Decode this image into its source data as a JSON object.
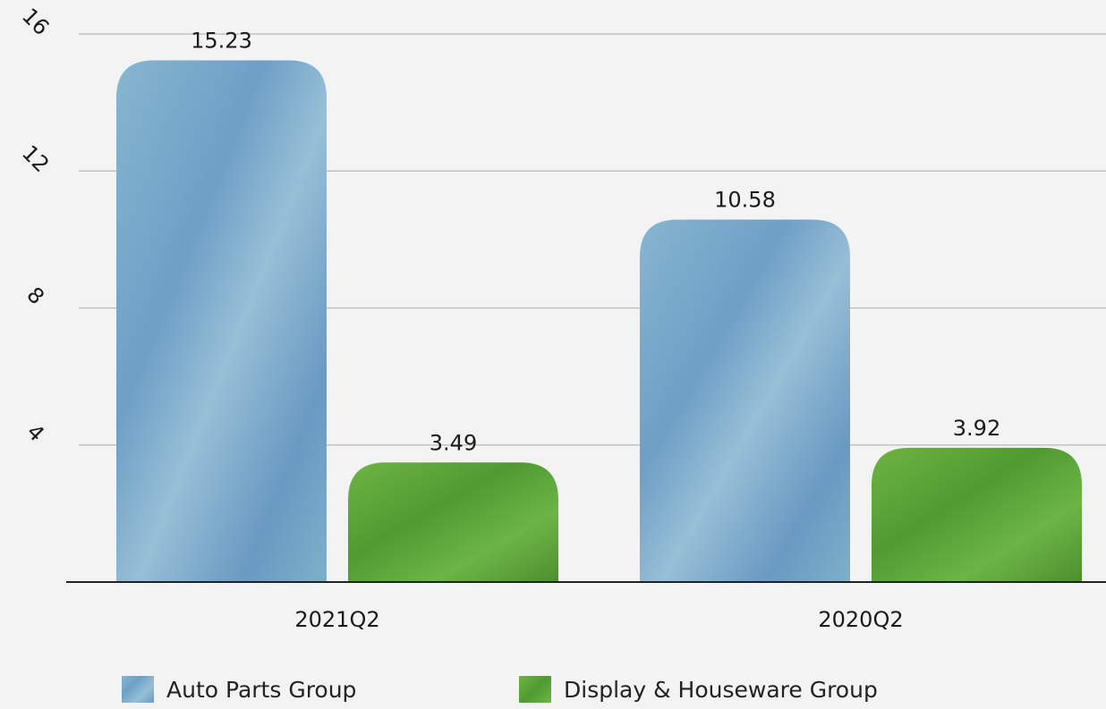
{
  "chart_data": {
    "type": "bar",
    "categories": [
      "2021Q2",
      "2020Q2"
    ],
    "series": [
      {
        "name": "Auto Parts Group",
        "values": [
          15.23,
          10.58
        ],
        "color": "#7aa7c8"
      },
      {
        "name": "Display & Houseware Group",
        "values": [
          3.49,
          3.92
        ],
        "color": "#5aa33a"
      }
    ],
    "ylim": [
      0,
      16
    ],
    "yticks": [
      4,
      8,
      12,
      16
    ],
    "ytick_labels": [
      "4",
      "8",
      "12",
      "16"
    ],
    "data_labels": [
      [
        "15.23",
        "10.58"
      ],
      [
        "3.49",
        "3.92"
      ]
    ],
    "grid": true,
    "legend_position": "bottom"
  },
  "legend": {
    "items": [
      "Auto Parts Group",
      "Display & Houseware Group"
    ]
  }
}
